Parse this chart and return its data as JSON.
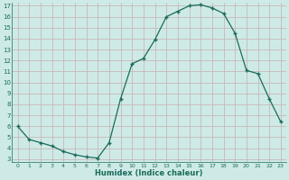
{
  "x": [
    0,
    1,
    2,
    3,
    4,
    5,
    6,
    7,
    8,
    9,
    10,
    11,
    12,
    13,
    14,
    15,
    16,
    17,
    18,
    19,
    20,
    21,
    22,
    23
  ],
  "y": [
    6.0,
    4.8,
    4.5,
    4.2,
    3.7,
    3.4,
    3.2,
    3.1,
    4.5,
    8.5,
    11.7,
    12.2,
    13.9,
    16.0,
    16.5,
    17.0,
    17.1,
    16.8,
    16.3,
    14.5,
    11.1,
    10.8,
    8.5,
    6.4
  ],
  "xlabel": "Humidex (Indice chaleur)",
  "ylim": [
    3,
    17
  ],
  "xlim": [
    0,
    23
  ],
  "yticks": [
    3,
    4,
    5,
    6,
    7,
    8,
    9,
    10,
    11,
    12,
    13,
    14,
    15,
    16,
    17
  ],
  "xticks": [
    0,
    1,
    2,
    3,
    4,
    5,
    6,
    7,
    8,
    9,
    10,
    11,
    12,
    13,
    14,
    15,
    16,
    17,
    18,
    19,
    20,
    21,
    22,
    23
  ],
  "line_color": "#1a6b5a",
  "marker_color": "#1a6b5a",
  "bg_color": "#ceeae7",
  "grid_color_major": "#c8b8b8",
  "grid_color_minor": "#b8d8d5",
  "tick_label_color": "#1a6b5a",
  "xlabel_color": "#1a6b5a"
}
